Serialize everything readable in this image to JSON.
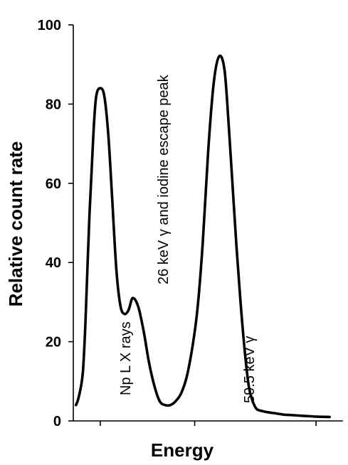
{
  "chart_data": {
    "type": "line",
    "xlabel": "Energy",
    "ylabel": "Relative count rate",
    "ylim": [
      0,
      100
    ],
    "yticks": [
      "0",
      "20",
      "40",
      "60",
      "80",
      "100"
    ],
    "xlim": [
      0,
      10
    ],
    "grid": false,
    "series": [
      {
        "x": [
          0.1,
          0.2,
          0.35,
          0.45,
          0.6,
          0.75,
          0.85,
          1.0,
          1.15,
          1.3,
          1.45,
          1.6,
          1.75,
          1.9,
          2.05,
          2.2,
          2.4,
          2.6,
          2.8,
          3.0,
          3.2,
          3.4,
          3.6,
          3.8,
          4.0,
          4.2,
          4.4,
          4.6,
          4.8,
          5.0,
          5.2,
          5.4,
          5.6,
          5.75,
          5.9,
          6.05,
          6.2,
          6.35,
          6.5,
          6.65,
          6.8,
          7.0,
          7.2,
          7.4,
          7.6,
          7.8,
          8.0,
          8.5,
          9.0,
          9.5
        ],
        "y": [
          4,
          6,
          12,
          25,
          52,
          73,
          82,
          84,
          82,
          72,
          55,
          38,
          29,
          27,
          28,
          31,
          29,
          23,
          15,
          9,
          5,
          4,
          4,
          5,
          7,
          11,
          18,
          28,
          45,
          68,
          85,
          92,
          89,
          76,
          60,
          44,
          30,
          18,
          9,
          5,
          3,
          2.5,
          2.2,
          2,
          1.8,
          1.6,
          1.5,
          1.3,
          1.1,
          1
        ]
      }
    ],
    "annotations": [
      {
        "text": "Np L X rays",
        "x": 0.95,
        "y": 0
      },
      {
        "text": "26 keV γ and iodine escape peak",
        "x": 2.2,
        "y": 35
      },
      {
        "text": "59.5 keV γ",
        "x": 5.2,
        "y": 0
      }
    ]
  }
}
